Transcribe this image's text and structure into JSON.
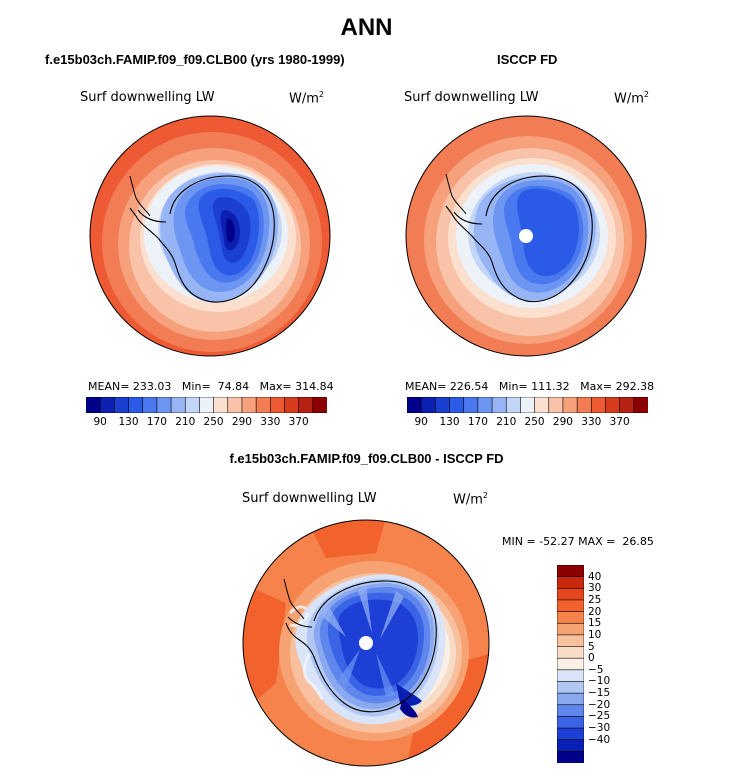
{
  "title": "ANN",
  "units_label": "W/m",
  "units_exp": "2",
  "stat_labels": {
    "mean": "MEAN=",
    "min": "Min=",
    "max": "Max="
  },
  "panels": [
    {
      "id": "model",
      "title": "f.e15b03ch.FAMIP.f09_f09.CLB00 (yrs 1980-1999)",
      "variable": "Surf downwelling LW",
      "mean": "233.03",
      "min": "74.84",
      "max": "314.84"
    },
    {
      "id": "obs",
      "title": "ISCCP FD",
      "variable": "Surf downwelling LW",
      "mean": "226.54",
      "min": "111.32",
      "max": "292.38"
    }
  ],
  "difference": {
    "title": "f.e15b03ch.FAMIP.f09_f09.CLB00 - ISCCP FD",
    "variable": "Surf downwelling LW",
    "min_label": "MIN =",
    "min": "-52.27",
    "max_label": "MAX =",
    "max": "26.85"
  },
  "abs_colorbar": {
    "labels": [
      "90",
      "130",
      "170",
      "210",
      "250",
      "290",
      "330",
      "370"
    ],
    "colors": [
      "#00008b",
      "#0b1fb0",
      "#1b3fd0",
      "#2b5be6",
      "#4a78ee",
      "#6d95f2",
      "#97b5f5",
      "#c3d6f7",
      "#edf1f8",
      "#fbe0d0",
      "#f8c3a8",
      "#f6a07c",
      "#f27d55",
      "#ee5a33",
      "#d73c1c",
      "#b52212",
      "#8b0000"
    ]
  },
  "diff_colorbar": {
    "labels": [
      "40",
      "30",
      "25",
      "20",
      "15",
      "10",
      "5",
      "0",
      "−5",
      "−10",
      "−15",
      "−20",
      "−25",
      "−30",
      "−40"
    ],
    "colors": [
      "#8b0000",
      "#c8290e",
      "#e6461e",
      "#f2622d",
      "#f5834b",
      "#f7a273",
      "#f8c09e",
      "#f7dcc7",
      "#fbeee4",
      "#d9e4f8",
      "#b1c7f4",
      "#8aa8f0",
      "#5f86ec",
      "#3a63e6",
      "#1d3fd6",
      "#0a20b4",
      "#00008b"
    ]
  }
}
